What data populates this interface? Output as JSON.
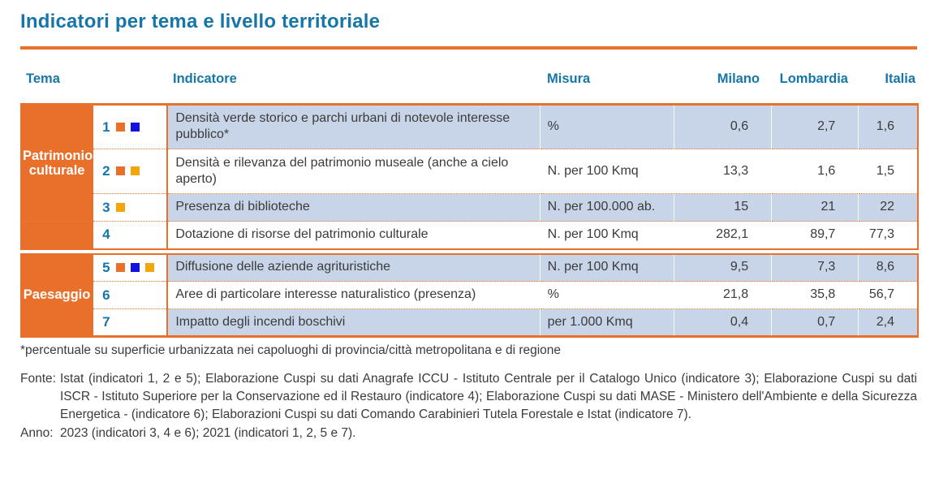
{
  "page": {
    "title": "Indicatori per tema e livello territoriale"
  },
  "colors": {
    "accent_orange": "#E8702B",
    "accent_blue": "#1776A8",
    "row_shade": "#C8D4E7",
    "text_dark": "#3B3B3B",
    "orange_square": "#E8702B",
    "blue_square": "#1111E0",
    "yellow_square": "#F2A60A"
  },
  "table": {
    "headers": {
      "tema": "Tema",
      "indicatore": "Indicatore",
      "misura": "Misura",
      "milano": "Milano",
      "lombardia": "Lombardia",
      "italia": "Italia"
    },
    "groups": [
      {
        "tema": "Patrimonio culturale",
        "rows": [
          {
            "num": "1",
            "squares": [
              "orange",
              "blue"
            ],
            "indicatore": "Densità verde storico e parchi urbani di notevole interesse pubblico*",
            "misura": "%",
            "milano": "0,6",
            "lombardia": "2,7",
            "italia": "1,6"
          },
          {
            "num": "2",
            "squares": [
              "orange",
              "yellow"
            ],
            "indicatore": "Densità e rilevanza del patrimonio museale (anche a cielo aperto)",
            "misura": "N. per 100 Kmq",
            "milano": "13,3",
            "lombardia": "1,6",
            "italia": "1,5"
          },
          {
            "num": "3",
            "squares": [
              "yellow"
            ],
            "indicatore": "Presenza di biblioteche",
            "misura": "N. per 100.000 ab.",
            "milano": "15",
            "lombardia": "21",
            "italia": "22"
          },
          {
            "num": "4",
            "squares": [],
            "indicatore": "Dotazione di risorse del patrimonio culturale",
            "misura": "N. per 100 Kmq",
            "milano": "282,1",
            "lombardia": "89,7",
            "italia": "77,3"
          }
        ]
      },
      {
        "tema": "Paesaggio",
        "rows": [
          {
            "num": "5",
            "squares": [
              "orange",
              "blue",
              "yellow"
            ],
            "indicatore": "Diffusione delle aziende agrituristiche",
            "misura": "N. per 100 Kmq",
            "milano": "9,5",
            "lombardia": "7,3",
            "italia": "8,6"
          },
          {
            "num": "6",
            "squares": [],
            "indicatore": "Aree di particolare interesse naturalistico (presenza)",
            "misura": "%",
            "milano": "21,8",
            "lombardia": "35,8",
            "italia": "56,7"
          },
          {
            "num": "7",
            "squares": [],
            "indicatore": "Impatto degli incendi boschivi",
            "misura": "per 1.000 Kmq",
            "milano": "0,4",
            "lombardia": "0,7",
            "italia": "2,4"
          }
        ]
      }
    ]
  },
  "notes": {
    "footnote": "*percentuale su superficie urbanizzata nei capoluoghi di provincia/città metropolitana e di regione",
    "fonte_label": "Fonte:",
    "fonte_text": "Istat (indicatori 1, 2 e 5); Elaborazione Cuspi su dati Anagrafe ICCU - Istituto Centrale per il Catalogo Unico (indicatore 3); Elaborazione Cuspi su dati ISCR - Istituto Superiore per la Conservazione ed il Restauro (indicatore 4); Elaborazione Cuspi su dati MASE - Ministero dell'Ambiente e della Sicurezza Energetica - (indicatore 6); Elaborazioni Cuspi su dati Comando Carabinieri Tutela Forestale e Istat (indicatore 7).",
    "anno_label": "Anno:",
    "anno_text": "2023 (indicatori 3, 4 e 6); 2021 (indicatori 1, 2, 5 e 7)."
  }
}
